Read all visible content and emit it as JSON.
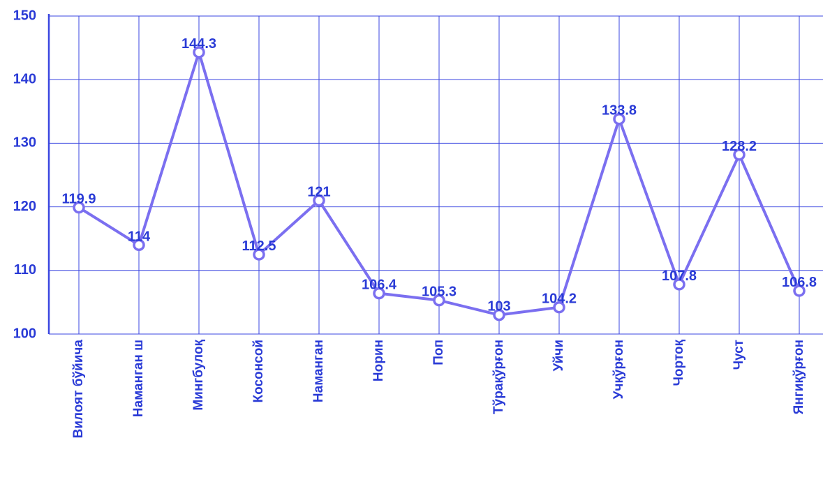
{
  "chart_data": {
    "type": "line",
    "categories": [
      "Вилоят бўйича",
      "Наманган ш",
      "Мингбулоқ",
      "Косонсой",
      "Наманган",
      "Норин",
      "Поп",
      "Тўрақўрғон",
      "Уйчи",
      "Учқўрғон",
      "Чортоқ",
      "Чуст",
      "Янгиқўрғон"
    ],
    "values": [
      119.9,
      114,
      144.3,
      112.5,
      121,
      106.4,
      105.3,
      103,
      104.2,
      133.8,
      107.8,
      128.2,
      106.8
    ],
    "color": "#7b6ff0",
    "ylim": [
      100,
      150
    ],
    "yticks": [
      100,
      110,
      120,
      130,
      140,
      150
    ],
    "grid": true
  }
}
